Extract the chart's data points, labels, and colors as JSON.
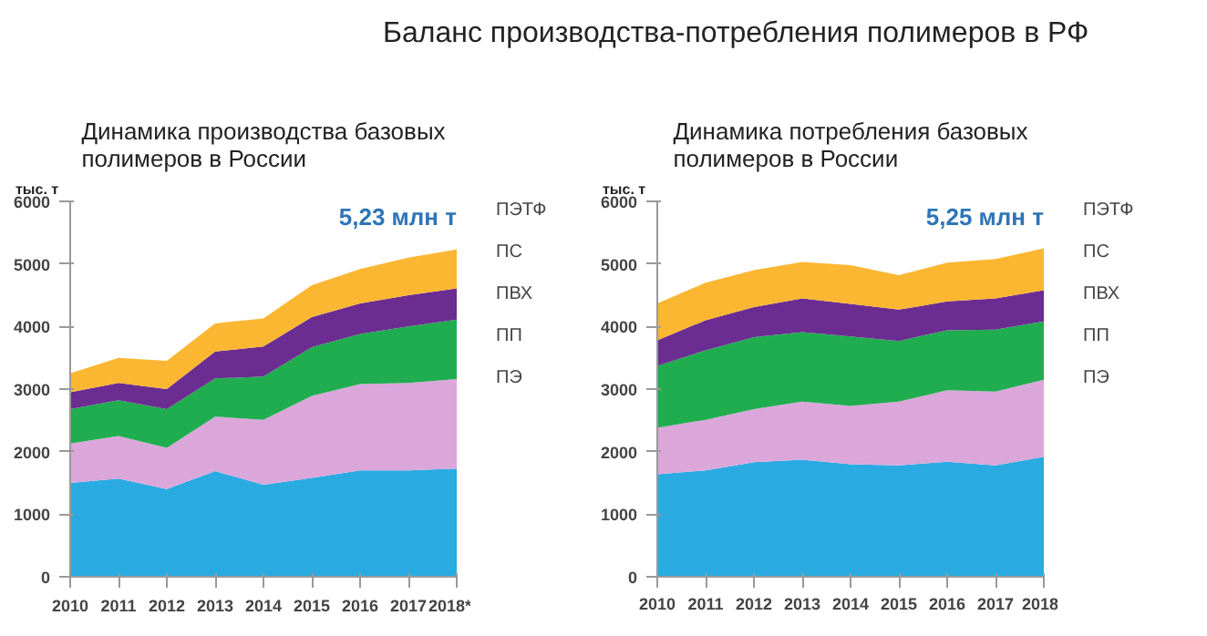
{
  "chart_data": [
    {
      "type": "area",
      "stacked": true,
      "title": "Динамика производства базовых\nполимеров в России",
      "ylabel": "тыс. т",
      "annotations": [
        "Баланс производства-потребления полимеров в РФ",
        "5,23 млн т"
      ],
      "x": [
        2010,
        2011,
        2012,
        2013,
        2014,
        2015,
        2016,
        2017,
        2018
      ],
      "xlim": [
        2010,
        2018
      ],
      "xticks": [
        2010,
        2011,
        2012,
        2013,
        2014,
        2015,
        2016,
        2017,
        {
          "value": 2018,
          "label": "2018*"
        }
      ],
      "ylim": [
        0,
        6000
      ],
      "yticks": [
        0,
        1000,
        2000,
        3000,
        4000,
        5000,
        6000
      ],
      "grid": false,
      "legend": "right",
      "series": [
        {
          "name": "ПЭ",
          "color": "#29abe2",
          "values": [
            1500,
            1570,
            1400,
            1690,
            1470,
            1580,
            1700,
            1700,
            1730
          ]
        },
        {
          "name": "ПП",
          "color": "#dba6da",
          "values": [
            630,
            680,
            660,
            870,
            1040,
            1310,
            1380,
            1400,
            1430
          ]
        },
        {
          "name": "ПВХ",
          "color": "#20ad4f",
          "values": [
            550,
            570,
            620,
            610,
            690,
            780,
            800,
            900,
            950
          ]
        },
        {
          "name": "ПС",
          "color": "#6b2d91",
          "values": [
            270,
            280,
            320,
            430,
            480,
            480,
            490,
            500,
            500
          ]
        },
        {
          "name": "ПЭТФ",
          "color": "#fbb732",
          "values": [
            300,
            400,
            450,
            450,
            450,
            510,
            550,
            600,
            620
          ]
        }
      ]
    },
    {
      "type": "area",
      "stacked": true,
      "title": "Динамика потребления базовых\nполимеров в России",
      "ylabel": "тыс. т",
      "annotations": [
        "5,25 млн т"
      ],
      "x": [
        2010,
        2011,
        2012,
        2013,
        2014,
        2015,
        2016,
        2017,
        2018
      ],
      "xlim": [
        2010,
        2018
      ],
      "xticks": [
        2010,
        2011,
        2012,
        2013,
        2014,
        2015,
        2016,
        2017,
        2018
      ],
      "ylim": [
        0,
        6000
      ],
      "yticks": [
        0,
        1000,
        2000,
        3000,
        4000,
        5000,
        6000
      ],
      "grid": false,
      "legend": "right",
      "series": [
        {
          "name": "ПЭ",
          "color": "#29abe2",
          "values": [
            1640,
            1700,
            1830,
            1870,
            1800,
            1780,
            1840,
            1780,
            1920
          ]
        },
        {
          "name": "ПП",
          "color": "#dba6da",
          "values": [
            740,
            810,
            850,
            930,
            930,
            1020,
            1140,
            1180,
            1230
          ]
        },
        {
          "name": "ПВХ",
          "color": "#20ad4f",
          "values": [
            990,
            1110,
            1150,
            1110,
            1110,
            970,
            960,
            990,
            930
          ]
        },
        {
          "name": "ПС",
          "color": "#6b2d91",
          "values": [
            410,
            480,
            480,
            540,
            520,
            500,
            460,
            500,
            500
          ]
        },
        {
          "name": "ПЭТФ",
          "color": "#fbb732",
          "values": [
            590,
            600,
            590,
            580,
            620,
            550,
            620,
            630,
            670
          ]
        }
      ]
    }
  ]
}
